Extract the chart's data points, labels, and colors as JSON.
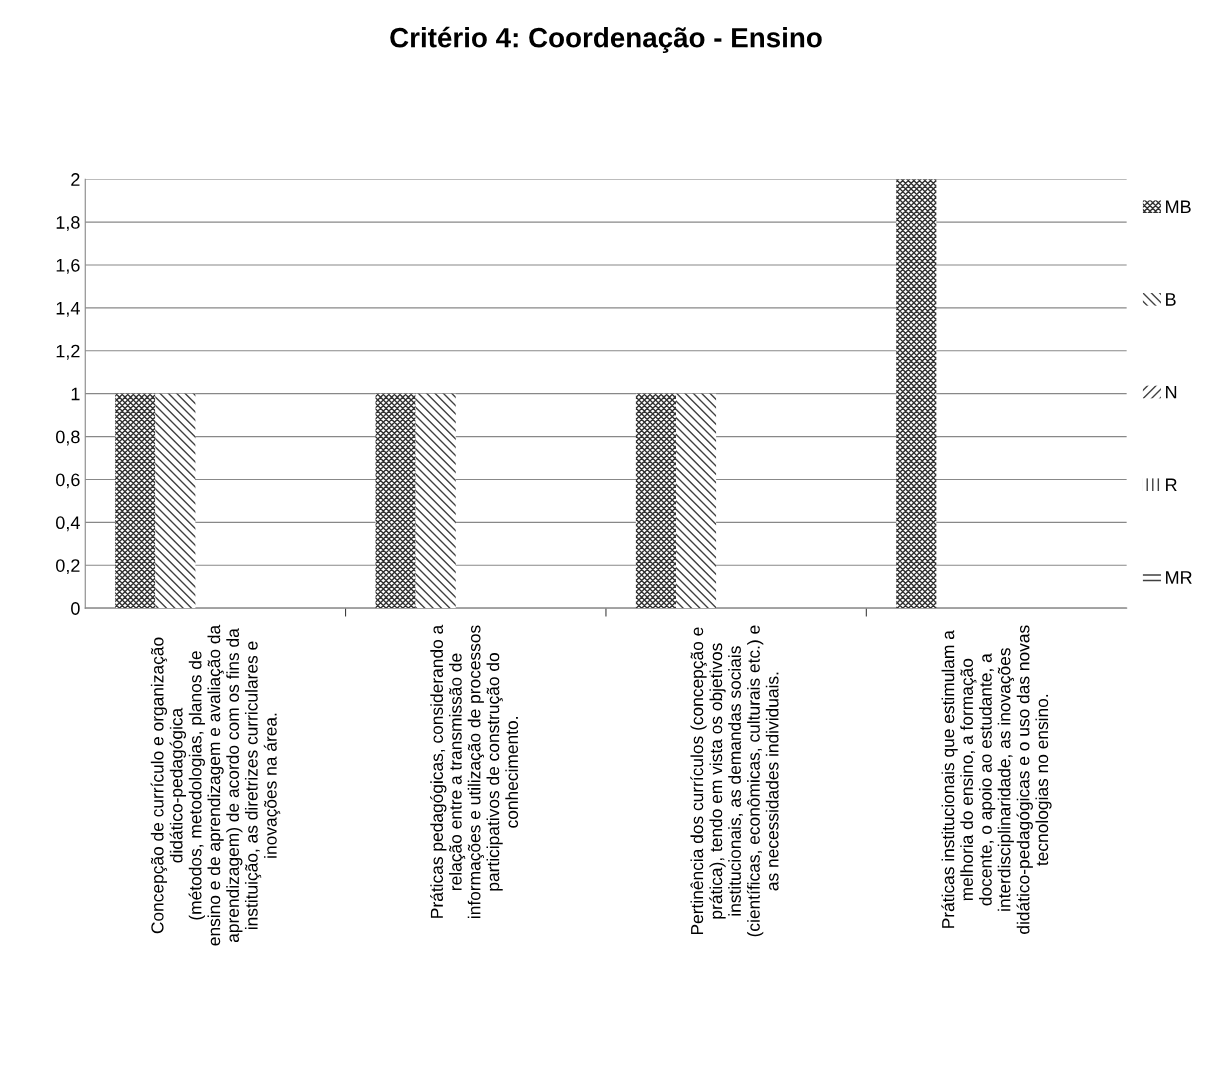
{
  "chart_data": {
    "type": "bar",
    "title": "Critério 4: Coordenação - Ensino",
    "categories": [
      "Concepção de currículo e organização\ndidático-pedagógica\n(métodos, metodologias, planos de\nensino e de aprendizagem e avaliação da\naprendizagem) de acordo com os fins da\ninstituição, as diretrizes curriculares e\ninovações na área.",
      "Práticas pedagógicas, considerando a\nrelação entre a transmissão de\ninformações e utilização de processos\nparticipativos de construção do\nconhecimento.",
      "Pertinência dos currículos (concepção e\nprática), tendo em vista os objetivos\ninstitucionais, as demandas sociais\n(científicas, econômicas, culturais etc.) e\nas necessidades individuais.",
      "Práticas institucionais que estimulam a\nmelhoria do ensino, a formação\ndocente, o apoio ao estudante, a\ninterdisciplinaridade, as inovações\ndidático-pedagógicas e o uso das novas\ntecnologias no ensino."
    ],
    "series": [
      {
        "name": "MB",
        "color": "#303030",
        "values": [
          1,
          1,
          1,
          2
        ]
      },
      {
        "name": "B",
        "color": "#404040",
        "values": [
          1,
          1,
          1,
          null
        ]
      },
      {
        "name": "N",
        "color": "#404040",
        "values": [
          null,
          null,
          null,
          null
        ]
      },
      {
        "name": "R",
        "color": "#404040",
        "values": [
          null,
          null,
          null,
          null
        ]
      },
      {
        "name": "MR",
        "color": "#404040",
        "values": [
          null,
          null,
          null,
          null
        ]
      }
    ],
    "ylim": [
      0,
      2
    ],
    "yticks": [
      0,
      {
        "value": 0.2,
        "label": "0,2"
      },
      {
        "value": 0.4,
        "label": "0,4"
      },
      {
        "value": 0.6,
        "label": "0,6"
      },
      {
        "value": 0.8,
        "label": "0,8"
      },
      1,
      {
        "value": 1.2,
        "label": "1,2"
      },
      {
        "value": 1.4,
        "label": "1,4"
      },
      {
        "value": 1.6,
        "label": "1,6"
      },
      {
        "value": 1.8,
        "label": "1,8"
      },
      2
    ],
    "grid": "y",
    "legend": "right"
  }
}
